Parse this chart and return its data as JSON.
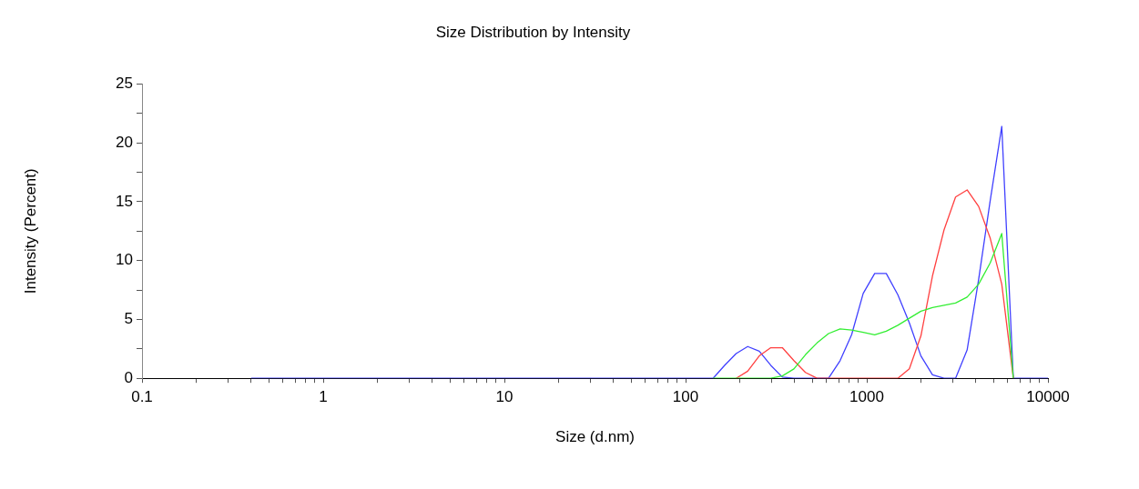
{
  "chart_data": {
    "type": "line",
    "title": "Size Distribution by Intensity",
    "xlabel": "Size (d.nm)",
    "ylabel": "Intensity (Percent)",
    "log": "x",
    "grid": false,
    "legend": false,
    "marker": "none",
    "line_style": "solid",
    "xlim": [
      0.1,
      10000
    ],
    "ylim": [
      0,
      25
    ],
    "xticks": [
      0.1,
      {
        "value": 0.2,
        "label": null
      },
      {
        "value": 0.3,
        "label": null
      },
      {
        "value": 0.4,
        "label": null
      },
      {
        "value": 0.5,
        "label": null
      },
      {
        "value": 0.6,
        "label": null
      },
      {
        "value": 0.7,
        "label": null
      },
      {
        "value": 0.8,
        "label": null
      },
      {
        "value": 0.9,
        "label": null
      },
      1,
      {
        "value": 2,
        "label": null
      },
      {
        "value": 3,
        "label": null
      },
      {
        "value": 4,
        "label": null
      },
      {
        "value": 5,
        "label": null
      },
      {
        "value": 6,
        "label": null
      },
      {
        "value": 7,
        "label": null
      },
      {
        "value": 8,
        "label": null
      },
      {
        "value": 9,
        "label": null
      },
      10,
      {
        "value": 20,
        "label": null
      },
      {
        "value": 30,
        "label": null
      },
      {
        "value": 40,
        "label": null
      },
      {
        "value": 50,
        "label": null
      },
      {
        "value": 60,
        "label": null
      },
      {
        "value": 70,
        "label": null
      },
      {
        "value": 80,
        "label": null
      },
      {
        "value": 90,
        "label": null
      },
      100,
      {
        "value": 200,
        "label": null
      },
      {
        "value": 300,
        "label": null
      },
      {
        "value": 400,
        "label": null
      },
      {
        "value": 500,
        "label": null
      },
      {
        "value": 600,
        "label": null
      },
      {
        "value": 700,
        "label": null
      },
      {
        "value": 800,
        "label": null
      },
      {
        "value": 900,
        "label": null
      },
      1000,
      {
        "value": 2000,
        "label": null
      },
      {
        "value": 3000,
        "label": null
      },
      {
        "value": 4000,
        "label": null
      },
      {
        "value": 5000,
        "label": null
      },
      {
        "value": 6000,
        "label": null
      },
      {
        "value": 7000,
        "label": null
      },
      {
        "value": 8000,
        "label": null
      },
      {
        "value": 9000,
        "label": null
      },
      10000
    ],
    "yticks": [
      0,
      {
        "value": 2.5,
        "label": null
      },
      5,
      {
        "value": 7.5,
        "label": null
      },
      10,
      {
        "value": 12.5,
        "label": null
      },
      15,
      {
        "value": 17.5,
        "label": null
      },
      20,
      {
        "value": 22.5,
        "label": null
      },
      25
    ],
    "series": [
      {
        "color": "#33ee33",
        "x": [
          141.8,
          164.2,
          190.1,
          220.2,
          255.0,
          295.3,
          342.0,
          396.1,
          458.7,
          531.2,
          615.1,
          712.4,
          825.0,
          955.4,
          1106,
          1281,
          1484,
          1718,
          1990,
          2305,
          2669,
          3091,
          3580,
          4145,
          4801,
          5560,
          6439
        ],
        "values": [
          0,
          0,
          0,
          0,
          0,
          0,
          0.2,
          0.8,
          2.0,
          3.0,
          3.8,
          4.2,
          4.1,
          3.9,
          3.7,
          4.0,
          4.5,
          5.1,
          5.7,
          6.0,
          6.2,
          6.4,
          6.9,
          8.0,
          9.8,
          12.3,
          0
        ]
      },
      {
        "color": "#ff4040",
        "x": [
          190.1,
          220.2,
          255.0,
          295.3,
          342.0,
          396.1,
          458.7,
          531.2,
          615.1,
          712.4,
          825.0,
          955.4,
          1106,
          1281,
          1484,
          1718,
          1990,
          2305,
          2669,
          3091,
          3580,
          4145,
          4801,
          5560,
          6439
        ],
        "values": [
          0,
          0.6,
          1.9,
          2.6,
          2.6,
          1.5,
          0.5,
          0,
          0,
          0,
          0,
          0,
          0,
          0,
          0,
          0.8,
          3.6,
          8.7,
          12.6,
          15.4,
          16.0,
          14.6,
          11.9,
          8.0,
          0
        ]
      },
      {
        "color": "#4040ff",
        "x": [
          0.4,
          141.8,
          164.2,
          190.1,
          220.2,
          255.0,
          295.3,
          342.0,
          396.1,
          458.7,
          531.2,
          615.1,
          712.4,
          825.0,
          955.4,
          1106,
          1281,
          1484,
          1718,
          1990,
          2305,
          2669,
          3091,
          3580,
          4145,
          4801,
          5560,
          6439,
          10000
        ],
        "values": [
          0,
          0,
          1.1,
          2.1,
          2.7,
          2.3,
          1.1,
          0.1,
          0,
          0,
          0,
          0,
          1.5,
          3.7,
          7.2,
          8.9,
          8.9,
          7.1,
          4.7,
          1.9,
          0.3,
          0,
          0,
          2.4,
          8.4,
          15.1,
          21.4,
          0,
          0
        ]
      }
    ]
  }
}
